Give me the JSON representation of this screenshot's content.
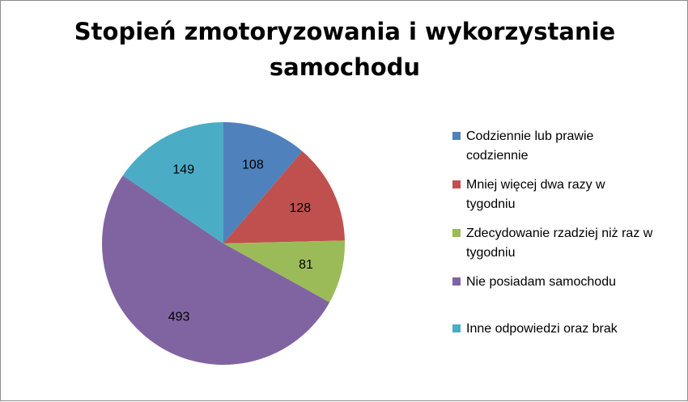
{
  "chart_data": {
    "type": "pie",
    "title": "Stopień zmotoryzowania i wykorzystanie samochodu",
    "title_lines": [
      "Stopień zmotoryzowania i wykorzystanie",
      "samochodu"
    ],
    "categories": [
      "Codziennie lub prawie codziennie",
      "Mniej więcej dwa razy w tygodniu",
      "Zdecydowanie rzadziej niż raz w tygodniu",
      "Nie posiadam samochodu",
      "Inne odpowiedzi oraz brak"
    ],
    "legend_lines": [
      [
        "Codziennie lub prawie",
        "codziennie"
      ],
      [
        "Mniej więcej dwa razy w",
        "tygodniu"
      ],
      [
        "Zdecydowanie rzadziej niż raz w",
        "tygodniu"
      ],
      [
        "Nie posiadam samochodu"
      ],
      [
        "Inne odpowiedzi oraz brak"
      ]
    ],
    "values": [
      108,
      128,
      81,
      493,
      149
    ],
    "colors": [
      "#4f81bd",
      "#c0504d",
      "#9bbb59",
      "#8064a2",
      "#4bacc6"
    ],
    "legend_position": "right",
    "data_labels": true,
    "start_angle": "top, clockwise"
  }
}
